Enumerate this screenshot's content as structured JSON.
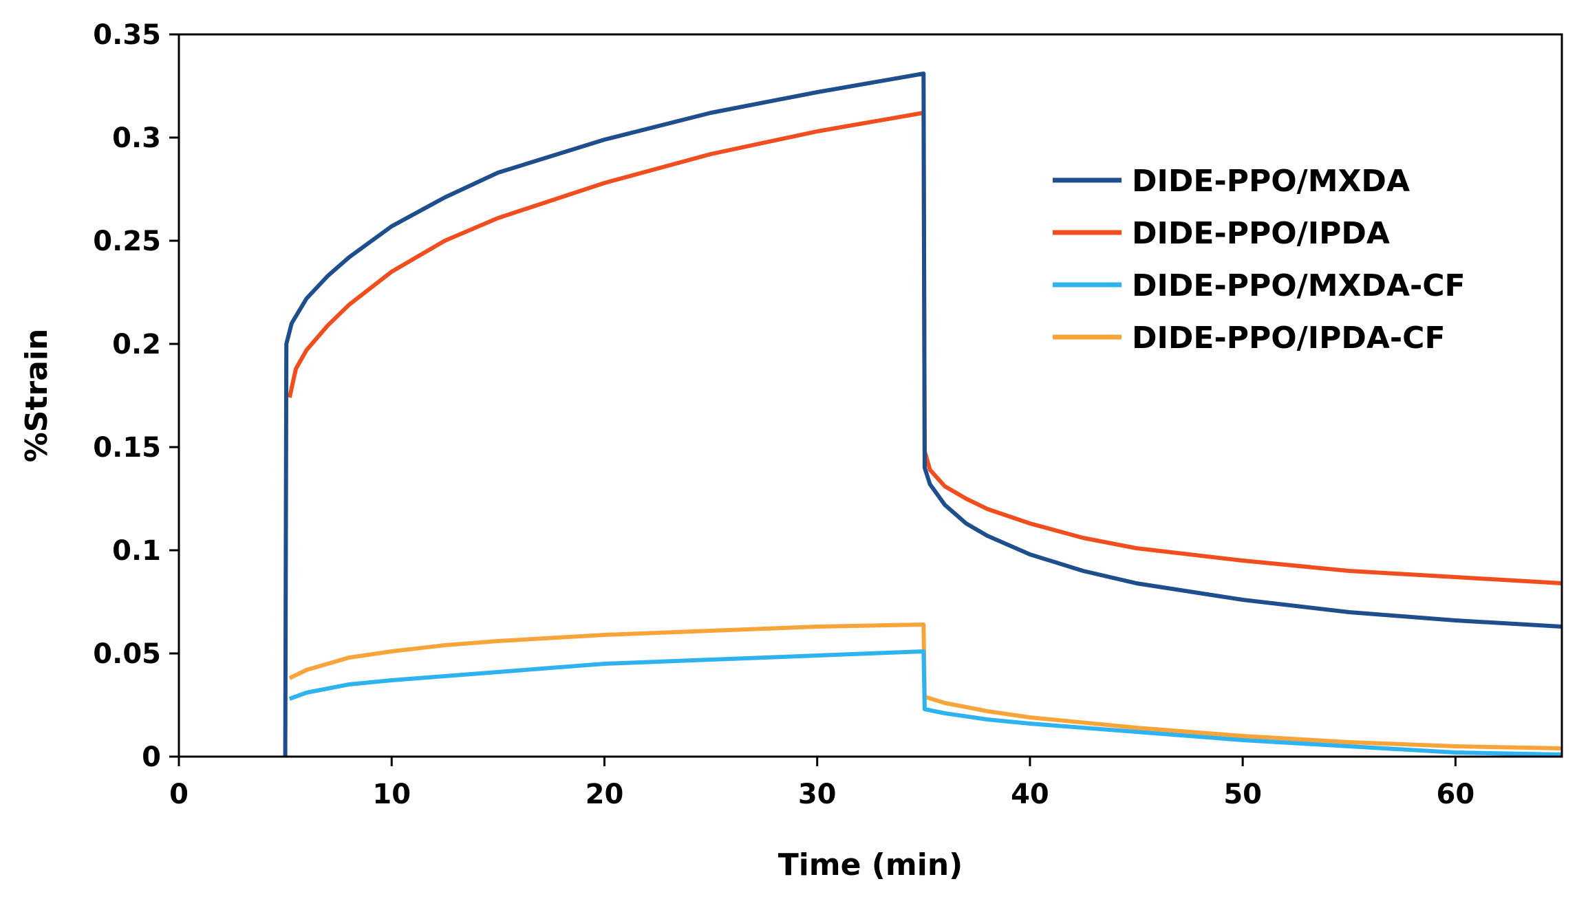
{
  "chart_data": {
    "type": "line",
    "title": "",
    "xlabel": "Time (min)",
    "ylabel": "%Strain",
    "xlim": [
      0,
      65
    ],
    "ylim": [
      0,
      0.35
    ],
    "xticks": [
      0,
      10,
      20,
      30,
      40,
      50,
      60
    ],
    "yticks": [
      0,
      0.05,
      0.1,
      0.15,
      0.2,
      0.25,
      0.3,
      0.35
    ],
    "ytick_labels": [
      "0",
      "0.05",
      "0.1",
      "0.15",
      "0.2",
      "0.25",
      "0.3",
      "0.35"
    ],
    "legend_position": "top-right",
    "grid": false,
    "series": [
      {
        "name": "DIDE-PPO/MXDA",
        "color": "#1f4e8c",
        "x": [
          5,
          5.05,
          5.3,
          6,
          7,
          8,
          10,
          12.5,
          15,
          20,
          25,
          30,
          35,
          35.05,
          35.3,
          36,
          37,
          38,
          40,
          42.5,
          45,
          50,
          55,
          60,
          65
        ],
        "y": [
          0,
          0.2,
          0.21,
          0.222,
          0.233,
          0.242,
          0.257,
          0.271,
          0.283,
          0.299,
          0.312,
          0.322,
          0.331,
          0.14,
          0.132,
          0.122,
          0.113,
          0.107,
          0.098,
          0.09,
          0.084,
          0.076,
          0.07,
          0.066,
          0.063
        ]
      },
      {
        "name": "DIDE-PPO/IPDA",
        "color": "#f04e1e",
        "x": [
          5.2,
          5.5,
          6,
          7,
          8,
          10,
          12.5,
          15,
          20,
          25,
          30,
          35,
          35.05,
          35.3,
          36,
          37,
          38,
          40,
          42.5,
          45,
          50,
          55,
          60,
          65
        ],
        "y": [
          0.174,
          0.188,
          0.197,
          0.209,
          0.219,
          0.235,
          0.25,
          0.261,
          0.278,
          0.292,
          0.303,
          0.312,
          0.148,
          0.139,
          0.131,
          0.125,
          0.12,
          0.113,
          0.106,
          0.101,
          0.095,
          0.09,
          0.087,
          0.084
        ]
      },
      {
        "name": "DIDE-PPO/MXDA-CF",
        "color": "#2eb2f0",
        "x": [
          5.2,
          6,
          7,
          8,
          10,
          12.5,
          15,
          20,
          25,
          30,
          35,
          35.05,
          36,
          38,
          40,
          45,
          50,
          55,
          60,
          65
        ],
        "y": [
          0.028,
          0.031,
          0.033,
          0.035,
          0.037,
          0.039,
          0.041,
          0.045,
          0.047,
          0.049,
          0.051,
          0.023,
          0.021,
          0.018,
          0.016,
          0.012,
          0.008,
          0.005,
          0.002,
          0.001
        ]
      },
      {
        "name": "DIDE-PPO/IPDA-CF",
        "color": "#f7a53a",
        "x": [
          5.2,
          6,
          7,
          8,
          10,
          12.5,
          15,
          20,
          25,
          30,
          35,
          35.05,
          36,
          38,
          40,
          45,
          50,
          55,
          60,
          65
        ],
        "y": [
          0.038,
          0.042,
          0.045,
          0.048,
          0.051,
          0.054,
          0.056,
          0.059,
          0.061,
          0.063,
          0.064,
          0.029,
          0.026,
          0.022,
          0.019,
          0.014,
          0.01,
          0.007,
          0.005,
          0.004
        ]
      }
    ]
  }
}
